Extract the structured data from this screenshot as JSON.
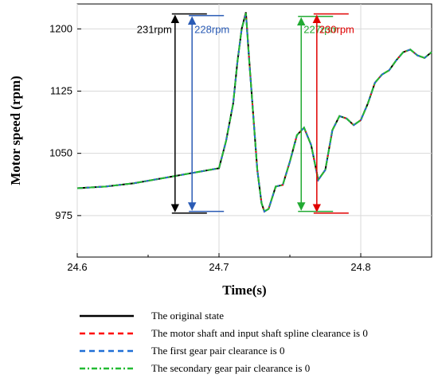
{
  "chart_data": {
    "type": "line",
    "xlabel": "Time(s)",
    "ylabel": "Motor speed (rpm)",
    "xlim": [
      24.6,
      24.85
    ],
    "ylim": [
      925,
      1230
    ],
    "xticks": [
      24.6,
      24.7,
      24.8
    ],
    "yticks": [
      975,
      1050,
      1125,
      1200
    ],
    "xtick_labels": [
      "24.6",
      "24.7",
      "24.8"
    ],
    "ytick_labels": [
      "975",
      "1050",
      "1125",
      "1200"
    ],
    "grid": true,
    "series": [
      {
        "name": "The original state",
        "color": "#000000",
        "dash": "solid",
        "x": [
          24.6,
          24.62,
          24.64,
          24.66,
          24.68,
          24.7,
          24.705,
          24.71,
          24.713,
          24.716,
          24.719,
          24.721,
          24.724,
          24.727,
          24.73,
          24.732,
          24.735,
          24.74,
          24.745,
          24.75,
          24.755,
          24.76,
          24.765,
          24.77,
          24.775,
          24.78,
          24.785,
          24.79,
          24.795,
          24.8,
          24.805,
          24.81,
          24.815,
          24.82,
          24.825,
          24.83,
          24.835,
          24.84,
          24.845,
          24.85
        ],
        "y": [
          1008,
          1010,
          1014,
          1020,
          1026,
          1032,
          1065,
          1110,
          1160,
          1200,
          1220,
          1170,
          1100,
          1030,
          990,
          980,
          983,
          1010,
          1012,
          1040,
          1072,
          1081,
          1060,
          1018,
          1030,
          1078,
          1095,
          1092,
          1084,
          1090,
          1110,
          1135,
          1145,
          1150,
          1162,
          1172,
          1175,
          1168,
          1165,
          1172
        ]
      },
      {
        "name": "The motor shaft and input shaft spline clearance is 0",
        "color": "#ff0000",
        "dash": "dash",
        "x": [
          24.6,
          24.62,
          24.64,
          24.66,
          24.68,
          24.7,
          24.705,
          24.71,
          24.713,
          24.716,
          24.719,
          24.721,
          24.724,
          24.727,
          24.73,
          24.732,
          24.735,
          24.74,
          24.745,
          24.75,
          24.755,
          24.76,
          24.765,
          24.77,
          24.775,
          24.78,
          24.785,
          24.79,
          24.795,
          24.8,
          24.805,
          24.81,
          24.815,
          24.82,
          24.825,
          24.83,
          24.835,
          24.84,
          24.845,
          24.85
        ],
        "y": [
          1008,
          1010,
          1014,
          1020,
          1026,
          1032,
          1065,
          1110,
          1160,
          1200,
          1219,
          1169,
          1100,
          1030,
          990,
          980,
          983,
          1010,
          1012,
          1040,
          1072,
          1081,
          1060,
          1018,
          1030,
          1078,
          1095,
          1092,
          1084,
          1090,
          1110,
          1135,
          1145,
          1150,
          1162,
          1172,
          1175,
          1168,
          1165,
          1172
        ]
      },
      {
        "name": "The first  gear pair clearance is 0",
        "color": "#1f6fd6",
        "dash": "dash",
        "x": [
          24.6,
          24.62,
          24.64,
          24.66,
          24.68,
          24.7,
          24.705,
          24.71,
          24.713,
          24.716,
          24.719,
          24.721,
          24.724,
          24.727,
          24.73,
          24.732,
          24.735,
          24.74,
          24.745,
          24.75,
          24.755,
          24.76,
          24.765,
          24.77,
          24.775,
          24.78,
          24.785,
          24.79,
          24.795,
          24.8,
          24.805,
          24.81,
          24.815,
          24.82,
          24.825,
          24.83,
          24.835,
          24.84,
          24.845,
          24.85
        ],
        "y": [
          1008,
          1010,
          1014,
          1020,
          1026,
          1032,
          1065,
          1110,
          1160,
          1200,
          1218,
          1168,
          1100,
          1030,
          990,
          980,
          983,
          1010,
          1012,
          1040,
          1072,
          1081,
          1060,
          1018,
          1030,
          1078,
          1095,
          1092,
          1084,
          1090,
          1110,
          1135,
          1145,
          1150,
          1162,
          1172,
          1175,
          1168,
          1165,
          1172
        ]
      },
      {
        "name": "The secondary  gear pair clearance is 0",
        "color": "#22bb33",
        "dash": "dashdot",
        "x": [
          24.6,
          24.62,
          24.64,
          24.66,
          24.68,
          24.7,
          24.705,
          24.71,
          24.713,
          24.716,
          24.719,
          24.721,
          24.724,
          24.727,
          24.73,
          24.732,
          24.735,
          24.74,
          24.745,
          24.75,
          24.755,
          24.76,
          24.765,
          24.77,
          24.775,
          24.78,
          24.785,
          24.79,
          24.795,
          24.8,
          24.805,
          24.81,
          24.815,
          24.82,
          24.825,
          24.83,
          24.835,
          24.84,
          24.845,
          24.85
        ],
        "y": [
          1008,
          1010,
          1014,
          1020,
          1026,
          1032,
          1065,
          1110,
          1160,
          1200,
          1219,
          1169,
          1100,
          1030,
          990,
          980,
          983,
          1010,
          1012,
          1040,
          1072,
          1081,
          1060,
          1018,
          1030,
          1078,
          1095,
          1092,
          1084,
          1090,
          1110,
          1135,
          1145,
          1150,
          1162,
          1172,
          1175,
          1168,
          1165,
          1172
        ]
      }
    ],
    "annotations": [
      {
        "text": "231rpm",
        "color": "#000000",
        "x": 24.669,
        "y_low": 978,
        "y_high": 1218
      },
      {
        "text": "228rpm",
        "color": "#2a5bb5",
        "x": 24.681,
        "y_low": 980,
        "y_high": 1216
      },
      {
        "text": "227rpm",
        "color": "#22aa33",
        "x": 24.758,
        "y_low": 980,
        "y_high": 1215
      },
      {
        "text": "230rpm",
        "color": "#e00000",
        "x": 24.769,
        "y_low": 978,
        "y_high": 1218
      }
    ],
    "legend_position": "bottom"
  }
}
